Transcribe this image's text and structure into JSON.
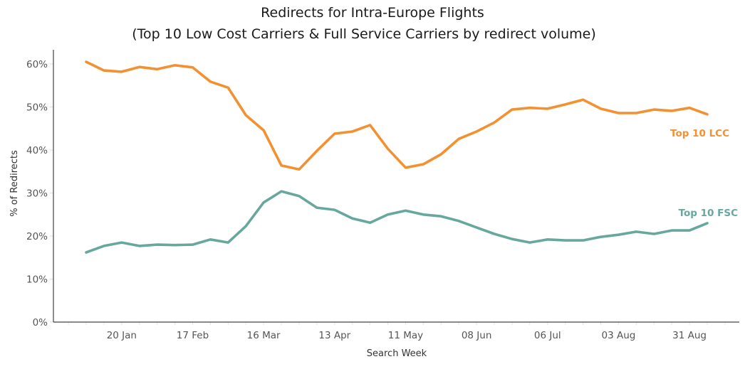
{
  "chart_data": {
    "type": "line",
    "title": "Redirects for Intra-Europe Flights",
    "subtitle": "(Top 10 Low Cost Carriers & Full Service Carriers by redirect volume)",
    "xlabel": "Search Week",
    "ylabel": "% of Redirects",
    "ylim": [
      0,
      60
    ],
    "y_ticks": [
      "0%",
      "10%",
      "20%",
      "30%",
      "40%",
      "50%",
      "60%"
    ],
    "y_tick_values": [
      0,
      10,
      20,
      30,
      40,
      50,
      60
    ],
    "x_tick_labels": [
      "20 Jan",
      "17 Feb",
      "16 Mar",
      "13 Apr",
      "11 May",
      "08 Jun",
      "06 Jul",
      "03 Aug",
      "31 Aug"
    ],
    "x_tick_indices": [
      2,
      6,
      10,
      14,
      18,
      22,
      26,
      30,
      34
    ],
    "x_count": 36,
    "grid": false,
    "legend": "inline-right",
    "series": [
      {
        "name": "Top 10 LCC",
        "color": "#f39030",
        "values": [
          60.5,
          58.5,
          58.2,
          59.3,
          58.8,
          59.7,
          59.2,
          55.9,
          54.5,
          48.1,
          44.6,
          36.4,
          35.5,
          39.8,
          43.8,
          44.3,
          45.8,
          40.3,
          35.9,
          36.7,
          39.0,
          42.6,
          44.3,
          46.4,
          49.4,
          49.8,
          49.6,
          50.6,
          51.7,
          49.6,
          48.6,
          48.6,
          49.4,
          49.1,
          49.8,
          48.3
        ]
      },
      {
        "name": "Top 10 FSC",
        "color": "#67a89e",
        "values": [
          16.2,
          17.7,
          18.5,
          17.7,
          18.0,
          17.9,
          18.0,
          19.2,
          18.5,
          22.3,
          27.8,
          30.4,
          29.3,
          26.6,
          26.1,
          24.1,
          23.1,
          25.0,
          25.9,
          25.0,
          24.6,
          23.5,
          22.0,
          20.5,
          19.3,
          18.5,
          19.2,
          19.0,
          19.0,
          19.8,
          20.3,
          21.0,
          20.5,
          21.3,
          21.3,
          23.0
        ]
      }
    ]
  }
}
